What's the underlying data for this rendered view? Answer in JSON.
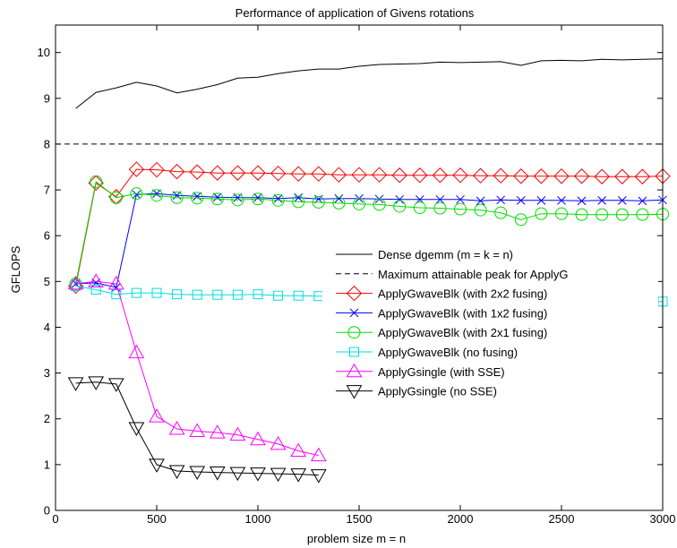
{
  "chart_data": {
    "type": "line",
    "title": "Performance of application of Givens rotations",
    "xlabel": "problem size m = n",
    "ylabel": "GFLOPS",
    "xlim": [
      0,
      3000
    ],
    "ylim": [
      0,
      10.6
    ],
    "xticks": [
      0,
      500,
      1000,
      1500,
      2000,
      2500,
      3000
    ],
    "yticks": [
      0,
      1,
      2,
      3,
      4,
      5,
      6,
      7,
      8,
      9,
      10
    ],
    "grid": false,
    "legend_position": "bottom-right",
    "series": [
      {
        "name": "Dense dgemm (m = k = n)",
        "color": "#000000",
        "dash": "solid",
        "marker": "none",
        "x": [
          100,
          200,
          300,
          400,
          500,
          600,
          700,
          800,
          900,
          1000,
          1100,
          1200,
          1300,
          1400,
          1500,
          1600,
          1700,
          1800,
          1900,
          2000,
          2100,
          2200,
          2300,
          2400,
          2500,
          2600,
          2700,
          2800,
          2900,
          3000
        ],
        "y": [
          8.78,
          9.13,
          9.23,
          9.35,
          9.27,
          9.12,
          9.2,
          9.3,
          9.44,
          9.46,
          9.54,
          9.6,
          9.64,
          9.64,
          9.7,
          9.74,
          9.75,
          9.76,
          9.79,
          9.78,
          9.79,
          9.8,
          9.72,
          9.82,
          9.83,
          9.82,
          9.85,
          9.84,
          9.85,
          9.86
        ]
      },
      {
        "name": "Maximum attainable peak for ApplyG",
        "color": "#000000",
        "dash": "dashed",
        "marker": "none",
        "x": [
          0,
          3000
        ],
        "y": [
          8.0,
          8.0
        ]
      },
      {
        "name": "ApplyGwaveBlk (with 2x2 fusing)",
        "color": "#ff0000",
        "dash": "solid",
        "marker": "diamond",
        "x": [
          100,
          200,
          300,
          400,
          500,
          600,
          700,
          800,
          900,
          1000,
          1100,
          1200,
          1300,
          1400,
          1500,
          1600,
          1700,
          1800,
          1900,
          2000,
          2100,
          2200,
          2300,
          2400,
          2500,
          2600,
          2700,
          2800,
          2900,
          3000
        ],
        "y": [
          4.9,
          7.15,
          6.85,
          7.45,
          7.44,
          7.4,
          7.39,
          7.37,
          7.37,
          7.37,
          7.36,
          7.35,
          7.35,
          7.33,
          7.33,
          7.33,
          7.32,
          7.32,
          7.32,
          7.32,
          7.31,
          7.31,
          7.3,
          7.3,
          7.3,
          7.3,
          7.29,
          7.29,
          7.29,
          7.3
        ]
      },
      {
        "name": "ApplyGwaveBlk (with 1x2 fusing)",
        "color": "#0000ff",
        "dash": "solid",
        "marker": "x",
        "x": [
          100,
          200,
          300,
          400,
          500,
          600,
          700,
          800,
          900,
          1000,
          1100,
          1200,
          1300,
          1400,
          1500,
          1600,
          1700,
          1800,
          1900,
          2000,
          2100,
          2200,
          2300,
          2400,
          2500,
          2600,
          2700,
          2800,
          2900,
          3000
        ],
        "y": [
          4.95,
          4.97,
          4.87,
          6.9,
          6.92,
          6.88,
          6.86,
          6.84,
          6.83,
          6.83,
          6.81,
          6.83,
          6.8,
          6.81,
          6.81,
          6.8,
          6.79,
          6.79,
          6.79,
          6.79,
          6.76,
          6.78,
          6.77,
          6.77,
          6.77,
          6.76,
          6.77,
          6.77,
          6.76,
          6.78
        ]
      },
      {
        "name": "ApplyGwaveBlk (with 2x1 fusing)",
        "color": "#00dd00",
        "dash": "solid",
        "marker": "circle",
        "x": [
          100,
          200,
          300,
          400,
          500,
          600,
          700,
          800,
          900,
          1000,
          1100,
          1200,
          1300,
          1400,
          1500,
          1600,
          1700,
          1800,
          1900,
          2000,
          2100,
          2200,
          2300,
          2400,
          2500,
          2600,
          2700,
          2800,
          2900,
          3000
        ],
        "y": [
          4.95,
          7.18,
          6.83,
          6.92,
          6.88,
          6.83,
          6.82,
          6.8,
          6.78,
          6.8,
          6.77,
          6.74,
          6.73,
          6.71,
          6.69,
          6.68,
          6.64,
          6.61,
          6.6,
          6.58,
          6.56,
          6.5,
          6.35,
          6.48,
          6.48,
          6.46,
          6.46,
          6.46,
          6.46,
          6.47
        ]
      },
      {
        "name": "ApplyGwaveBlk (no fusing)",
        "color": "#00dddd",
        "dash": "solid",
        "marker": "square",
        "x": [
          100,
          200,
          300,
          400,
          500,
          600,
          700,
          800,
          900,
          1000,
          1100,
          1200,
          1300,
          1400,
          1500,
          1600,
          1700,
          1800,
          1900,
          2000,
          2100,
          2200,
          2300,
          2400,
          2500,
          2600,
          2700,
          2800,
          2900,
          3000
        ],
        "y": [
          4.9,
          4.82,
          4.72,
          4.75,
          4.75,
          4.72,
          4.71,
          4.71,
          4.71,
          4.72,
          4.69,
          4.69,
          4.68,
          4.68,
          4.67,
          4.67,
          4.65,
          4.65,
          4.65,
          4.65,
          4.65,
          4.6,
          4.55,
          4.58,
          4.58,
          4.56,
          4.56,
          4.56,
          4.56,
          4.56
        ]
      },
      {
        "name": "ApplyGsingle (with SSE)",
        "color": "#ff00ff",
        "dash": "solid",
        "marker": "triangle-up",
        "x": [
          100,
          200,
          300,
          400,
          500,
          600,
          700,
          800,
          900,
          1000,
          1100,
          1200,
          1300
        ],
        "y": [
          4.95,
          5.0,
          4.95,
          3.45,
          2.05,
          1.78,
          1.73,
          1.7,
          1.65,
          1.55,
          1.45,
          1.3,
          1.2
        ]
      },
      {
        "name": "ApplyGsingle (no SSE)",
        "color": "#000000",
        "dash": "solid",
        "marker": "triangle-down",
        "x": [
          100,
          200,
          300,
          400,
          500,
          600,
          700,
          800,
          900,
          1000,
          1100,
          1200,
          1300
        ],
        "y": [
          2.78,
          2.8,
          2.76,
          1.8,
          1.0,
          0.86,
          0.84,
          0.83,
          0.82,
          0.81,
          0.8,
          0.79,
          0.77
        ]
      }
    ]
  }
}
